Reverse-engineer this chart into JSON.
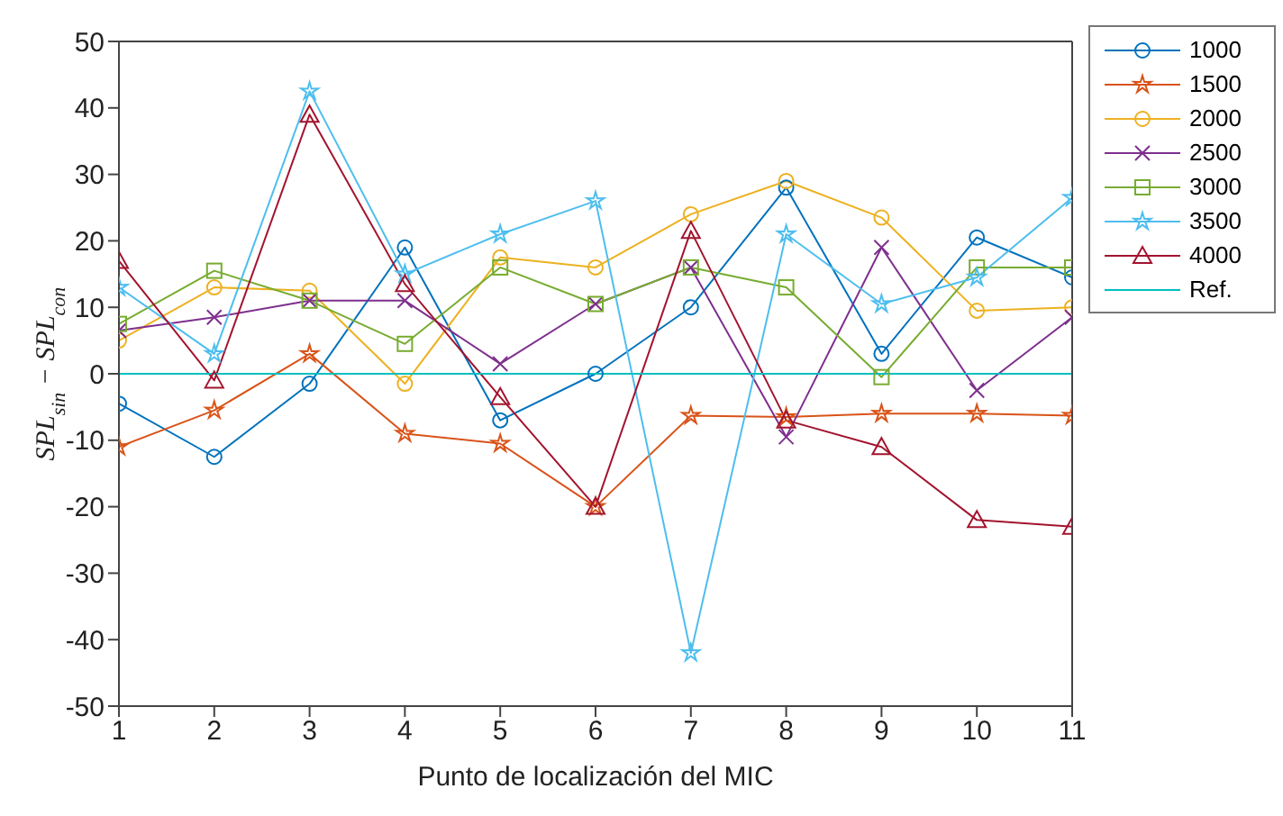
{
  "chart_data": {
    "type": "line",
    "xlabel": "Punto de localización del MIC",
    "ylabel": "SPL$_{sin}$ − SPL$_{con}$",
    "x": [
      1,
      2,
      3,
      4,
      5,
      6,
      7,
      8,
      9,
      10,
      11
    ],
    "xlim": [
      1,
      11
    ],
    "xticks": [
      1,
      2,
      3,
      4,
      5,
      6,
      7,
      8,
      9,
      10,
      11
    ],
    "ylim": [
      -50,
      50
    ],
    "yticks": [
      -50,
      -40,
      -30,
      -20,
      -10,
      0,
      10,
      20,
      30,
      40,
      50
    ],
    "grid": false,
    "legend": "top right",
    "series": [
      {
        "name": "1000",
        "color": "#0072bd",
        "marker": "circle",
        "values": [
          -4.5,
          -12.5,
          -1.5,
          19,
          -7,
          0,
          10,
          28,
          3,
          20.5,
          14.5
        ]
      },
      {
        "name": "1500",
        "color": "#d95319",
        "marker": "star",
        "values": [
          -11,
          -5.5,
          3,
          -9,
          -10.5,
          -20,
          -6.3,
          -6.5,
          -6,
          -6,
          -6.3
        ]
      },
      {
        "name": "2000",
        "color": "#edb120",
        "marker": "circle",
        "values": [
          5,
          13,
          12.5,
          -1.5,
          17.5,
          16,
          24,
          29,
          23.5,
          9.5,
          10
        ]
      },
      {
        "name": "2500",
        "color": "#7e2f8e",
        "marker": "cross",
        "values": [
          6.5,
          8.5,
          11,
          11,
          1.5,
          10.5,
          16,
          -9.5,
          19,
          -2.5,
          8.5
        ]
      },
      {
        "name": "3000",
        "color": "#77ac30",
        "marker": "square",
        "values": [
          7.5,
          15.5,
          11,
          4.5,
          16,
          10.5,
          16,
          13,
          -0.5,
          16,
          16
        ]
      },
      {
        "name": "3500",
        "color": "#4dbeee",
        "marker": "star",
        "values": [
          13,
          3,
          42.5,
          15,
          21,
          26,
          -42,
          21,
          10.5,
          14.5,
          26.5
        ]
      },
      {
        "name": "4000",
        "color": "#a2142f",
        "marker": "triangle",
        "values": [
          17,
          -1,
          39,
          13.5,
          -3.5,
          -20,
          21.5,
          -7,
          -11,
          -22,
          -23
        ]
      },
      {
        "name": "Ref.",
        "color": "#00bfbf",
        "marker": "none",
        "values": [
          0,
          0,
          0,
          0,
          0,
          0,
          0,
          0,
          0,
          0,
          0
        ]
      }
    ]
  }
}
